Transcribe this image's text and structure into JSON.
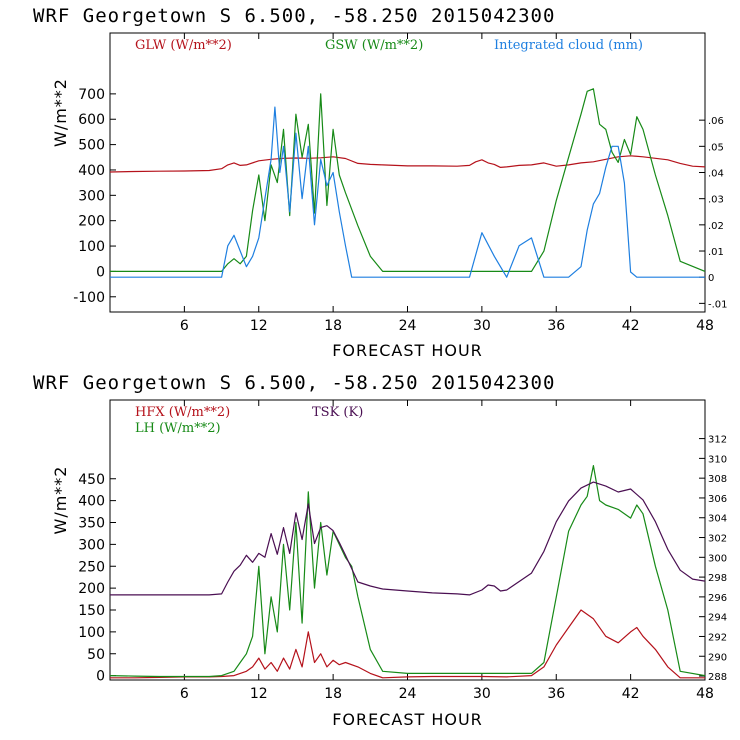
{
  "chart_data": [
    {
      "type": "line",
      "title": "WRF   Georgetown S   6.500, -58.250  2015042300",
      "xlabel": "FORECAST HOUR",
      "ylabel": "W/m**2",
      "xlim": [
        0,
        48
      ],
      "ylim": [
        -160,
        940
      ],
      "xticks": [
        6,
        12,
        18,
        24,
        30,
        36,
        42,
        48
      ],
      "yticks": [
        -100,
        0,
        100,
        200,
        300,
        400,
        500,
        600,
        700
      ],
      "y2lim": [
        -0.0133,
        0.0933
      ],
      "y2ticks": [
        -0.01,
        0,
        0.01,
        0.02,
        0.03,
        0.04,
        0.05,
        0.06
      ],
      "y2ticklabels": [
        "-.01",
        "0",
        ".01",
        ".02",
        ".03",
        ".04",
        ".05",
        ".06"
      ],
      "grid": false,
      "series": [
        {
          "name": "GLW (W/m**2)",
          "label": "GLW (W/m**2)",
          "color": "#b5121b",
          "axis": "left",
          "x": [
            0,
            2,
            4,
            6,
            8,
            9,
            9.5,
            10,
            10.5,
            11,
            12,
            13,
            14,
            15,
            16,
            17,
            18,
            19,
            20,
            21,
            22,
            24,
            26,
            28,
            29,
            29.5,
            30,
            30.5,
            31,
            31.5,
            32,
            33,
            34,
            35,
            36,
            37,
            38,
            39,
            40,
            41,
            42,
            43,
            44,
            45,
            46,
            47,
            48
          ],
          "y": [
            392,
            394,
            395,
            396,
            398,
            405,
            420,
            428,
            418,
            420,
            436,
            442,
            446,
            447,
            446,
            448,
            452,
            445,
            426,
            422,
            420,
            416,
            416,
            415,
            418,
            432,
            440,
            428,
            422,
            410,
            412,
            418,
            420,
            428,
            415,
            420,
            428,
            432,
            442,
            452,
            456,
            452,
            446,
            440,
            426,
            415,
            412
          ]
        },
        {
          "name": "GSW (W/m**2)",
          "label": "GSW (W/m**2)",
          "color": "#178a17",
          "axis": "left",
          "x": [
            0,
            9,
            9.5,
            10,
            10.5,
            11,
            11.5,
            12,
            12.5,
            13,
            13.5,
            14,
            14.5,
            15,
            15.5,
            16,
            16.5,
            17,
            17.5,
            18,
            18.5,
            19,
            20,
            21,
            22,
            24,
            30,
            34,
            35,
            36,
            37,
            38,
            38.5,
            39,
            39.5,
            40,
            40.5,
            41,
            41.5,
            42,
            42.5,
            43,
            44,
            45,
            46,
            48
          ],
          "y": [
            0,
            0,
            30,
            50,
            30,
            60,
            240,
            380,
            200,
            420,
            350,
            560,
            220,
            620,
            450,
            580,
            230,
            700,
            260,
            560,
            380,
            310,
            180,
            60,
            0,
            0,
            0,
            0,
            80,
            280,
            450,
            620,
            710,
            720,
            580,
            560,
            470,
            430,
            520,
            460,
            610,
            560,
            380,
            220,
            40,
            0
          ]
        },
        {
          "name": "Integrated cloud (mm)",
          "label": "Integrated cloud (mm)",
          "color": "#1e7fe0",
          "axis": "right",
          "x": [
            0,
            9,
            9.5,
            10,
            10.5,
            11,
            11.5,
            12,
            12.5,
            13,
            13.3,
            13.7,
            14,
            14.5,
            15,
            15.5,
            16,
            16.5,
            17,
            17.5,
            18,
            18.5,
            19,
            19.5,
            20,
            29,
            30,
            31,
            32,
            33,
            34,
            35,
            36,
            37,
            38,
            38.5,
            39,
            39.5,
            40,
            40.5,
            41,
            41.5,
            42,
            42.5,
            48
          ],
          "y": [
            0,
            0,
            0.012,
            0.016,
            0.01,
            0.004,
            0.008,
            0.015,
            0.03,
            0.045,
            0.065,
            0.04,
            0.05,
            0.025,
            0.055,
            0.03,
            0.05,
            0.02,
            0.045,
            0.035,
            0.04,
            0.025,
            0.012,
            0,
            0,
            0,
            0.017,
            0.008,
            0,
            0.012,
            0.015,
            0,
            0,
            0,
            0.004,
            0.018,
            0.028,
            0.032,
            0.042,
            0.05,
            0.05,
            0.036,
            0.002,
            0,
            0
          ]
        }
      ]
    },
    {
      "type": "line",
      "title": "WRF   Georgetown S   6.500, -58.250  2015042300",
      "xlabel": "FORECAST HOUR",
      "ylabel": "W/m**2",
      "xlim": [
        0,
        48
      ],
      "ylim": [
        -10,
        630
      ],
      "xticks": [
        6,
        12,
        18,
        24,
        30,
        36,
        42,
        48
      ],
      "yticks": [
        0,
        50,
        100,
        150,
        200,
        250,
        300,
        350,
        400,
        450
      ],
      "y2lim": [
        287.6,
        315.9
      ],
      "y2ticks": [
        288,
        290,
        292,
        294,
        296,
        298,
        300,
        302,
        304,
        306,
        308,
        310,
        312
      ],
      "grid": false,
      "series": [
        {
          "name": "HFX (W/m**2)",
          "label": "HFX (W/m**2)",
          "color": "#b5121b",
          "axis": "left",
          "x": [
            0,
            2,
            4,
            6,
            8,
            9,
            10,
            10.5,
            11,
            11.5,
            12,
            12.5,
            13,
            13.5,
            14,
            14.5,
            15,
            15.5,
            16,
            16.5,
            17,
            17.5,
            18,
            18.5,
            19,
            20,
            21,
            22,
            24,
            26,
            28,
            30,
            32,
            34,
            35,
            36,
            37,
            38,
            39,
            40,
            41,
            42,
            42.5,
            43,
            44,
            45,
            46,
            48
          ],
          "y": [
            -5,
            -5,
            -4,
            -3,
            -3,
            -2,
            0,
            5,
            10,
            20,
            40,
            15,
            30,
            10,
            40,
            15,
            60,
            20,
            100,
            30,
            50,
            20,
            35,
            25,
            30,
            20,
            5,
            -5,
            -3,
            -2,
            -2,
            -2,
            -3,
            0,
            20,
            70,
            110,
            150,
            130,
            90,
            75,
            100,
            110,
            90,
            60,
            20,
            -5,
            -5
          ]
        },
        {
          "name": "LH (W/m**2)",
          "label": "LH (W/m**2)",
          "color": "#178a17",
          "axis": "left",
          "x": [
            0,
            2,
            4,
            6,
            8,
            9,
            10,
            10.5,
            11,
            11.5,
            12,
            12.5,
            13,
            13.5,
            14,
            14.5,
            15,
            15.5,
            16,
            16.5,
            17,
            17.5,
            18,
            18.5,
            19,
            19.5,
            20,
            21,
            22,
            24,
            30,
            34,
            35,
            36,
            37,
            38,
            38.5,
            39,
            39.5,
            40,
            41,
            42,
            42.5,
            43,
            44,
            45,
            46,
            48
          ],
          "y": [
            0,
            -1,
            -2,
            -2,
            -2,
            0,
            10,
            30,
            50,
            90,
            250,
            50,
            180,
            100,
            300,
            150,
            350,
            120,
            420,
            200,
            350,
            230,
            330,
            300,
            270,
            250,
            180,
            60,
            10,
            5,
            5,
            5,
            30,
            180,
            330,
            390,
            410,
            480,
            400,
            390,
            380,
            360,
            390,
            370,
            250,
            150,
            10,
            0
          ]
        },
        {
          "name": "TSK (K)",
          "label": "TSK (K)",
          "color": "#4a0f52",
          "axis": "right",
          "x": [
            0,
            2,
            4,
            6,
            8,
            9,
            9.5,
            10,
            10.5,
            11,
            11.5,
            12,
            12.5,
            13,
            13.5,
            14,
            14.5,
            15,
            15.5,
            16,
            16.5,
            17,
            17.5,
            18,
            18.5,
            19,
            20,
            21,
            22,
            24,
            26,
            28,
            29,
            30,
            30.5,
            31,
            31.5,
            32,
            34,
            35,
            36,
            37,
            38,
            39,
            40,
            41,
            42,
            43,
            44,
            45,
            46,
            47,
            48
          ],
          "y": [
            296.2,
            296.2,
            296.2,
            296.2,
            296.2,
            296.3,
            297.5,
            298.6,
            299.2,
            300.2,
            299.5,
            300.4,
            300.0,
            302.4,
            300.3,
            303.0,
            300.4,
            304.5,
            301.8,
            305.4,
            301.4,
            303.0,
            303.2,
            302.7,
            301.5,
            300.2,
            297.5,
            297.1,
            296.8,
            296.6,
            296.4,
            296.3,
            296.2,
            296.7,
            297.2,
            297.1,
            296.6,
            296.7,
            298.4,
            300.6,
            303.6,
            305.7,
            307.0,
            307.6,
            307.2,
            306.6,
            306.9,
            305.8,
            303.6,
            300.8,
            298.7,
            297.8,
            297.6
          ]
        }
      ]
    }
  ]
}
